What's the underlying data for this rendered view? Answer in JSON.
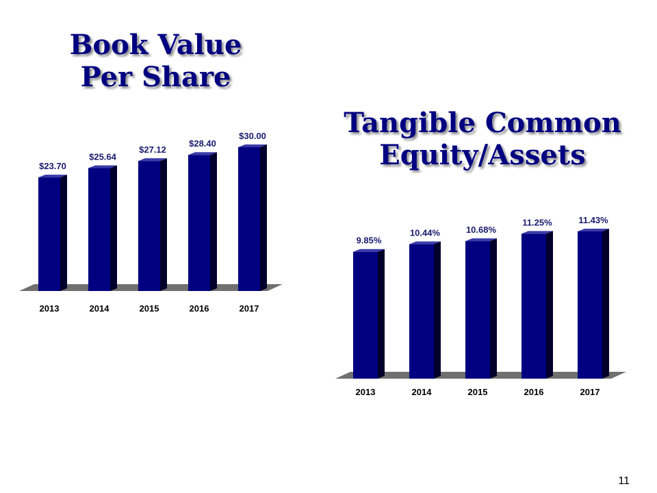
{
  "colors": {
    "title": "#000080",
    "bar_front": "#000080",
    "bar_side": "#00002a",
    "bar_top": "#3a3aa8",
    "label_text": "#1a1a6e",
    "floor": "#707070"
  },
  "titles": {
    "left": [
      "Book Value",
      "Per Share"
    ],
    "right": [
      "Tangible Common",
      "Equity/Assets"
    ]
  },
  "page_number": "11",
  "chart_data": [
    {
      "type": "bar",
      "title": "Book Value Per Share",
      "categories": [
        "2013",
        "2014",
        "2015",
        "2016",
        "2017"
      ],
      "values": [
        23.7,
        25.64,
        27.12,
        28.4,
        30.0
      ],
      "value_labels": [
        "$23.70",
        "$25.64",
        "$27.12",
        "$28.40",
        "$30.00"
      ],
      "ylim": [
        0,
        30.0
      ],
      "grid": false,
      "style": "3d"
    },
    {
      "type": "bar",
      "title": "Tangible Common Equity/Assets",
      "categories": [
        "2013",
        "2014",
        "2015",
        "2016",
        "2017"
      ],
      "values": [
        9.85,
        10.44,
        10.68,
        11.25,
        11.43
      ],
      "value_labels": [
        "9.85%",
        "10.44%",
        "10.68%",
        "11.25%",
        "11.43%"
      ],
      "ylim": [
        0,
        11.43
      ],
      "grid": false,
      "style": "3d"
    }
  ]
}
